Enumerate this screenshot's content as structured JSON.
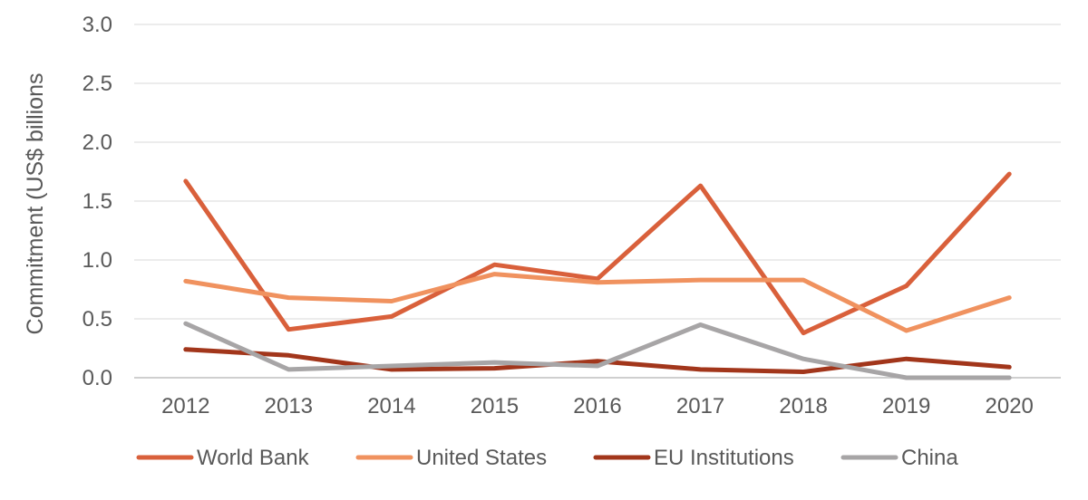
{
  "chart_data": {
    "type": "line",
    "title": "",
    "xlabel": "",
    "ylabel": "Commitment (US$ billions",
    "ylim": [
      0,
      3.0
    ],
    "yticks": [
      "0.0",
      "0.5",
      "1.0",
      "1.5",
      "2.0",
      "2.5",
      "3.0"
    ],
    "x": [
      "2012",
      "2013",
      "2014",
      "2015",
      "2016",
      "2017",
      "2018",
      "2019",
      "2020"
    ],
    "grid": "horizontal",
    "legend_position": "bottom",
    "series": [
      {
        "name": "World Bank",
        "color": "#D9603B",
        "values": [
          1.67,
          0.41,
          0.52,
          0.96,
          0.84,
          1.63,
          0.38,
          0.78,
          1.73
        ]
      },
      {
        "name": "United States",
        "color": "#F0925F",
        "values": [
          0.82,
          0.68,
          0.65,
          0.88,
          0.81,
          0.83,
          0.83,
          0.4,
          0.68
        ]
      },
      {
        "name": "EU Institutions",
        "color": "#A2361B",
        "values": [
          0.24,
          0.19,
          0.07,
          0.08,
          0.14,
          0.07,
          0.05,
          0.16,
          0.09
        ]
      },
      {
        "name": "China",
        "color": "#A7A5A6",
        "values": [
          0.46,
          0.07,
          0.1,
          0.13,
          0.1,
          0.45,
          0.16,
          0.0,
          0.0
        ]
      }
    ]
  }
}
